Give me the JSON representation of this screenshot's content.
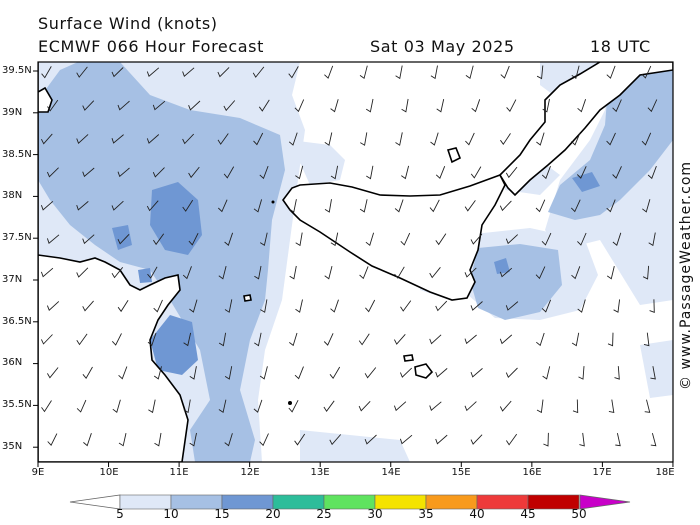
{
  "header": {
    "title": "Surface Wind (knots)",
    "model": "ECMWF 066 Hour Forecast",
    "date": "Sat 03 May 2025",
    "time": "18 UTC"
  },
  "credit": "© www.PassageWeather.com",
  "map": {
    "lon_range": [
      9,
      18
    ],
    "lat_range": [
      34.75,
      39.6
    ],
    "lat_ticks": [
      "39.5N",
      "39N",
      "38.5N",
      "38N",
      "37.5N",
      "37N",
      "36.5N",
      "36N",
      "35.5N",
      "35N"
    ],
    "lon_ticks": [
      "9E",
      "10E",
      "11E",
      "12E",
      "13E",
      "14E",
      "15E",
      "16E",
      "17E",
      "18E"
    ],
    "regions": [
      "Sardinia coast",
      "Tunisia coast",
      "Sicily",
      "Calabria",
      "Malta",
      "Pantelleria",
      "Aeolian Islands"
    ]
  },
  "colorbar": {
    "labels": [
      "5",
      "10",
      "15",
      "20",
      "25",
      "30",
      "35",
      "40",
      "45",
      "50"
    ],
    "colors": [
      "#ffffff",
      "#dfe8f7",
      "#a6c0e4",
      "#6f97d3",
      "#2dbd9a",
      "#5fe35f",
      "#f4e300",
      "#f89a1c",
      "#ee3a3a",
      "#c00000",
      "#c800c8"
    ]
  }
}
